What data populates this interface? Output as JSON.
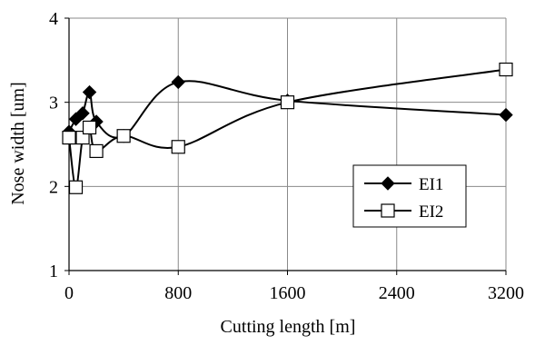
{
  "chart_data": {
    "type": "line",
    "title": "",
    "xlabel": "Cutting length [m]",
    "ylabel": "Nose width [um]",
    "xlim": [
      0,
      3200
    ],
    "ylim": [
      1,
      4
    ],
    "xticks": [
      0,
      800,
      1600,
      2400,
      3200
    ],
    "yticks": [
      1,
      2,
      3,
      4
    ],
    "grid": true,
    "smoothed": true,
    "legend_position": "right",
    "series": [
      {
        "name": "EI1",
        "marker": "filled-diamond",
        "color": "#000000",
        "points": [
          {
            "x": 0,
            "y": 2.65
          },
          {
            "x": 50,
            "y": 2.8
          },
          {
            "x": 100,
            "y": 2.87
          },
          {
            "x": 150,
            "y": 3.12
          },
          {
            "x": 200,
            "y": 2.77
          },
          {
            "x": 400,
            "y": 2.6
          },
          {
            "x": 800,
            "y": 3.24
          },
          {
            "x": 1600,
            "y": 3.02
          },
          {
            "x": 3200,
            "y": 2.85
          }
        ]
      },
      {
        "name": "EI2",
        "marker": "open-square",
        "color": "#000000",
        "points": [
          {
            "x": 0,
            "y": 2.58
          },
          {
            "x": 50,
            "y": 1.99
          },
          {
            "x": 100,
            "y": 2.58
          },
          {
            "x": 150,
            "y": 2.7
          },
          {
            "x": 200,
            "y": 2.42
          },
          {
            "x": 400,
            "y": 2.6
          },
          {
            "x": 800,
            "y": 2.47
          },
          {
            "x": 1600,
            "y": 3.0
          },
          {
            "x": 3200,
            "y": 3.39
          }
        ]
      }
    ]
  }
}
